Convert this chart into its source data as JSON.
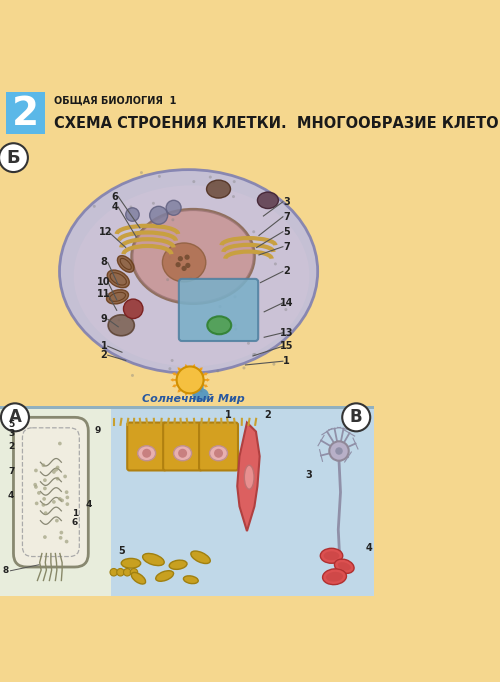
{
  "bg_color": "#F5D78E",
  "header_bg": "#F5D78E",
  "header_num_bg": "#5BB8E8",
  "header_num_text": "2",
  "header_subtitle": "ОБЩАЯ БИОЛОГИЯ  1",
  "header_title": "СХЕМА СТРОЕНИЯ КЛЕТКИ.  МНОГООБРАЗИЕ КЛЕТОК",
  "section_b_label": "Б",
  "section_a_label": "А",
  "section_v_label": "В",
  "watermark": "Солнечный Мир",
  "label_color": "#222222",
  "line_color": "#555555",
  "title_color": "#1A1A1A"
}
